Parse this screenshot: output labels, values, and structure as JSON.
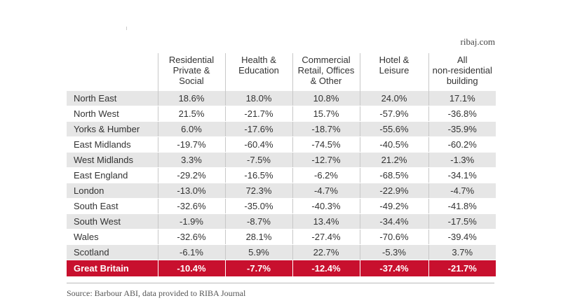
{
  "site": "ribaj.com",
  "columns": [
    "Residential\nPrivate &\nSocial",
    "Health &\nEducation",
    "Commercial\nRetail, Offices\n& Other",
    "Hotel &\nLeisure",
    "All\nnon-residential\nbuilding"
  ],
  "rows": [
    {
      "region": "North East",
      "values": [
        "18.6%",
        "18.0%",
        "10.8%",
        "24.0%",
        "17.1%"
      ]
    },
    {
      "region": "North West",
      "values": [
        "21.5%",
        "-21.7%",
        "15.7%",
        "-57.9%",
        "-36.8%"
      ]
    },
    {
      "region": "Yorks & Humber",
      "values": [
        "6.0%",
        "-17.6%",
        "-18.7%",
        "-55.6%",
        "-35.9%"
      ]
    },
    {
      "region": "East Midlands",
      "values": [
        "-19.7%",
        "-60.4%",
        "-74.5%",
        "-40.5%",
        "-60.2%"
      ]
    },
    {
      "region": "West Midlands",
      "values": [
        "3.3%",
        "-7.5%",
        "-12.7%",
        "21.2%",
        "-1.3%"
      ]
    },
    {
      "region": "East England",
      "values": [
        "-29.2%",
        "-16.5%",
        "-6.2%",
        "-68.5%",
        "-34.1%"
      ]
    },
    {
      "region": "London",
      "values": [
        "-13.0%",
        "72.3%",
        "-4.7%",
        "-22.9%",
        "-4.7%"
      ]
    },
    {
      "region": "South East",
      "values": [
        "-32.6%",
        "-35.0%",
        "-40.3%",
        "-49.2%",
        "-41.8%"
      ]
    },
    {
      "region": "South West",
      "values": [
        "-1.9%",
        "-8.7%",
        "13.4%",
        "-34.4%",
        "-17.5%"
      ]
    },
    {
      "region": "Wales",
      "values": [
        "-32.6%",
        "28.1%",
        "-27.4%",
        "-70.6%",
        "-39.4%"
      ]
    },
    {
      "region": "Scotland",
      "values": [
        "-6.1%",
        "5.9%",
        "22.7%",
        "-5.3%",
        "3.7%"
      ]
    }
  ],
  "total": {
    "region": "Great Britain",
    "values": [
      "-10.4%",
      "-7.7%",
      "-12.4%",
      "-37.4%",
      "-21.7%"
    ]
  },
  "source": "Source: Barbour ABI, data provided to RIBA Journal",
  "colors": {
    "total_row": "#c8102e",
    "shade_row": "#e6e6e6"
  }
}
